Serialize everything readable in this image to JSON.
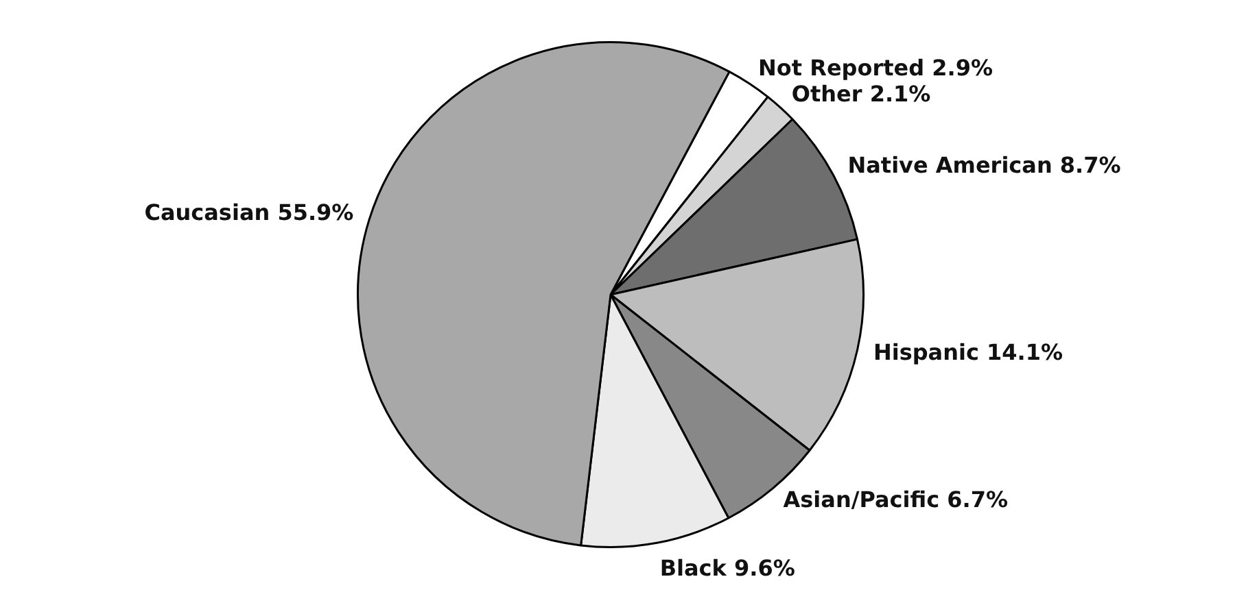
{
  "chart_data": {
    "type": "pie",
    "categories": [
      "Not Reported",
      "Other",
      "Native American",
      "Hispanic",
      "Asian/Pacific",
      "Black",
      "Caucasian"
    ],
    "values": [
      2.9,
      2.1,
      8.7,
      14.1,
      6.7,
      9.6,
      55.9
    ],
    "value_labels": [
      "2.9%",
      "2.1%",
      "8.7%",
      "14.1%",
      "6.7%",
      "9.6%",
      "55.9%"
    ],
    "colors": [
      "#ffffff",
      "#d4d4d4",
      "#6e6e6e",
      "#bdbdbd",
      "#888888",
      "#ebebeb",
      "#a8a8a8"
    ],
    "legend": false
  }
}
